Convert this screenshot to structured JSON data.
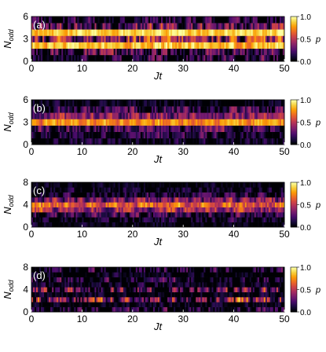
{
  "figure": {
    "panels": [
      "(a)",
      "(b)",
      "(c)",
      "(d)"
    ],
    "colormap": [
      "#000004",
      "#1b0c41",
      "#4a0c6b",
      "#781c6d",
      "#a52c60",
      "#cf4446",
      "#ed6925",
      "#fb9b06",
      "#f7d13d",
      "#fcffa4"
    ]
  },
  "chart_data": [
    {
      "type": "heatmap",
      "panel": "(a)",
      "xlabel": "Jt",
      "ylabel": "N_odd",
      "xlim": [
        0,
        50
      ],
      "ylim": [
        0,
        6
      ],
      "x_ticks": [
        "0",
        "10",
        "20",
        "30",
        "40",
        "50"
      ],
      "y_ticks": [
        "0",
        "3",
        "6"
      ],
      "colorbar": {
        "label": "p",
        "ticks": [
          "1.0",
          "0.5",
          "0.0"
        ],
        "range": [
          0,
          1
        ]
      },
      "rows": [
        {
          "N": 0,
          "base": 0.1,
          "amp": 0.5
        },
        {
          "N": 1,
          "base": 0.15,
          "amp": 0.55
        },
        {
          "N": 2,
          "base": 0.85,
          "amp": 0.25
        },
        {
          "N": 3,
          "base": 0.4,
          "amp": 0.6
        },
        {
          "N": 4,
          "base": 0.9,
          "amp": 0.2
        },
        {
          "N": 5,
          "base": 0.25,
          "amp": 0.55
        },
        {
          "N": 6,
          "base": 0.05,
          "amp": 0.45
        }
      ]
    },
    {
      "type": "heatmap",
      "panel": "(b)",
      "xlabel": "Jt",
      "ylabel": "N_odd",
      "xlim": [
        0,
        50
      ],
      "ylim": [
        0,
        6
      ],
      "x_ticks": [
        "0",
        "10",
        "20",
        "30",
        "40",
        "50"
      ],
      "y_ticks": [
        "0",
        "3",
        "6"
      ],
      "colorbar": {
        "label": "p",
        "ticks": [
          "1.0",
          "0.5",
          "0.0"
        ],
        "range": [
          0,
          1
        ]
      },
      "rows": [
        {
          "N": 0,
          "base": 0.05,
          "amp": 0.25
        },
        {
          "N": 1,
          "base": 0.1,
          "amp": 0.35
        },
        {
          "N": 2,
          "base": 0.2,
          "amp": 0.4
        },
        {
          "N": 3,
          "base": 0.75,
          "amp": 0.25
        },
        {
          "N": 4,
          "base": 0.35,
          "amp": 0.4
        },
        {
          "N": 5,
          "base": 0.15,
          "amp": 0.4
        },
        {
          "N": 6,
          "base": 0.02,
          "amp": 0.2
        }
      ]
    },
    {
      "type": "heatmap",
      "panel": "(c)",
      "xlabel": "Jt",
      "ylabel": "N_odd",
      "xlim": [
        0,
        50
      ],
      "ylim": [
        0,
        8
      ],
      "x_ticks": [
        "0",
        "10",
        "20",
        "30",
        "40",
        "50"
      ],
      "y_ticks": [
        "0",
        "4",
        "8"
      ],
      "colorbar": {
        "label": "p",
        "ticks": [
          "1.0",
          "0.5",
          "0.0"
        ],
        "range": [
          0,
          1
        ]
      },
      "rows": [
        {
          "N": 0,
          "base": 0.02,
          "amp": 0.2
        },
        {
          "N": 1,
          "base": 0.05,
          "amp": 0.3
        },
        {
          "N": 2,
          "base": 0.15,
          "amp": 0.4
        },
        {
          "N": 3,
          "base": 0.45,
          "amp": 0.4
        },
        {
          "N": 4,
          "base": 0.65,
          "amp": 0.35
        },
        {
          "N": 5,
          "base": 0.35,
          "amp": 0.4
        },
        {
          "N": 6,
          "base": 0.1,
          "amp": 0.35
        },
        {
          "N": 7,
          "base": 0.05,
          "amp": 0.25
        },
        {
          "N": 8,
          "base": 0.02,
          "amp": 0.15
        }
      ]
    },
    {
      "type": "heatmap",
      "panel": "(d)",
      "xlabel": "Jt",
      "ylabel": "N_odd",
      "xlim": [
        0,
        50
      ],
      "ylim": [
        0,
        8
      ],
      "x_ticks": [
        "0",
        "10",
        "20",
        "30",
        "40",
        "50"
      ],
      "y_ticks": [
        "0",
        "4",
        "8"
      ],
      "colorbar": {
        "label": "p",
        "ticks": [
          "1.0",
          "0.5",
          "0.0"
        ],
        "range": [
          0,
          1
        ]
      },
      "rows": [
        {
          "N": 0,
          "base": 0.02,
          "amp": 0.55
        },
        {
          "N": 1,
          "base": 0.02,
          "amp": 0.2
        },
        {
          "N": 2,
          "base": 0.3,
          "amp": 0.75
        },
        {
          "N": 3,
          "base": 0.02,
          "amp": 0.2
        },
        {
          "N": 4,
          "base": 0.2,
          "amp": 0.7
        },
        {
          "N": 5,
          "base": 0.02,
          "amp": 0.25
        },
        {
          "N": 6,
          "base": 0.05,
          "amp": 0.5
        },
        {
          "N": 7,
          "base": 0.02,
          "amp": 0.2
        },
        {
          "N": 8,
          "base": 0.02,
          "amp": 0.55
        }
      ]
    }
  ]
}
